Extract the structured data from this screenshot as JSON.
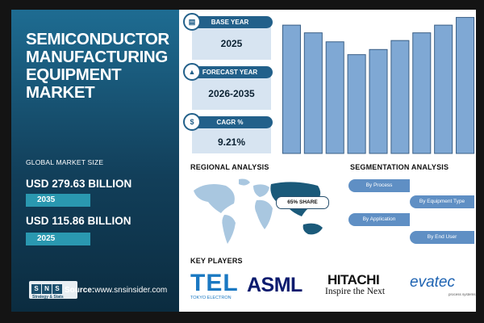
{
  "left": {
    "title": "SEMICONDUCTOR MANUFACTURING EQUIPMENT MARKET",
    "global_label": "GLOBAL MARKET SIZE",
    "value_2035": "USD 279.63 BILLION",
    "year_2035": "2035",
    "value_2025": "USD 115.86 BILLION",
    "year_2025": "2025",
    "logo_text": "Strategy & Stats",
    "source_label": "Source:",
    "source_url": "www.snsinsider.com"
  },
  "stats": {
    "base_year_label": "BASE YEAR",
    "base_year": "2025",
    "forecast_label": "FORECAST YEAR",
    "forecast": "2026-2035",
    "cagr_label": "CAGR %",
    "cagr": "9.21%"
  },
  "regional": {
    "title": "REGIONAL ANALYSIS",
    "share": "65% SHARE"
  },
  "segmentation": {
    "title": "SEGMENTATION ANALYSIS",
    "items": [
      "By Process",
      "By Equipment Type",
      "By Application",
      "By End User"
    ]
  },
  "key_players": {
    "title": "KEY PLAYERS",
    "tel": "TEL",
    "tel_sub": "TOKYO ELECTRON",
    "asml": "ASML",
    "hitachi": "HITACHI",
    "hitachi_sub": "Inspire the Next",
    "evatec": "evatec",
    "evatec_sub": "process systems"
  },
  "colors": {
    "bar": "#7fa8d4",
    "bar_stroke": "#3a5f86",
    "accent": "#22608a",
    "map_highlight": "#1b5a7a"
  },
  "chart_data": {
    "type": "bar",
    "title": "",
    "xlabel": "",
    "ylabel": "",
    "categories": [
      "",
      "",
      "",
      "",
      "",
      "",
      "",
      "",
      ""
    ],
    "values": [
      100,
      94,
      87,
      77,
      81,
      88,
      94,
      100,
      106
    ],
    "ylim": [
      0,
      107
    ],
    "grid": false,
    "legend": "none"
  }
}
